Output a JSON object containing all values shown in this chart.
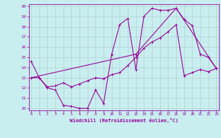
{
  "xlabel": "Windchill (Refroidissement éolien,°C)",
  "bg_color": "#c8eef0",
  "line_color": "#990099",
  "grid_color": "#b0c8c8",
  "xmin": 0,
  "xmax": 23,
  "ymin": 10,
  "ymax": 20,
  "xticks": [
    0,
    1,
    2,
    3,
    4,
    5,
    6,
    7,
    8,
    9,
    10,
    11,
    12,
    13,
    14,
    15,
    16,
    17,
    18,
    19,
    20,
    21,
    22,
    23
  ],
  "yticks": [
    10,
    11,
    12,
    13,
    14,
    15,
    16,
    17,
    18,
    19,
    20
  ],
  "curve1_x": [
    0,
    1,
    2,
    3,
    4,
    5,
    6,
    7,
    8,
    9,
    10,
    11,
    12,
    13,
    14,
    15,
    16,
    17,
    18,
    19,
    20,
    21,
    22,
    23
  ],
  "curve1_y": [
    14.6,
    13.0,
    12.0,
    11.8,
    10.3,
    10.2,
    10.0,
    10.0,
    11.8,
    10.5,
    15.3,
    18.2,
    18.8,
    13.8,
    19.0,
    19.8,
    19.6,
    19.6,
    19.8,
    18.7,
    18.1,
    15.3,
    15.0,
    13.9
  ],
  "curve2_x": [
    0,
    1,
    2,
    3,
    4,
    5,
    6,
    7,
    8,
    9,
    10,
    11,
    12,
    13,
    14,
    15,
    16,
    17,
    18,
    19,
    20,
    21,
    22,
    23
  ],
  "curve2_y": [
    13.0,
    13.0,
    12.1,
    12.2,
    12.5,
    12.1,
    12.4,
    12.7,
    13.0,
    12.9,
    13.3,
    13.5,
    14.2,
    15.0,
    15.9,
    16.5,
    16.9,
    17.5,
    18.2,
    13.2,
    13.5,
    13.8,
    13.6,
    13.9
  ],
  "curve3_x": [
    0,
    13,
    18,
    23
  ],
  "curve3_y": [
    13.0,
    15.3,
    19.8,
    13.9
  ]
}
